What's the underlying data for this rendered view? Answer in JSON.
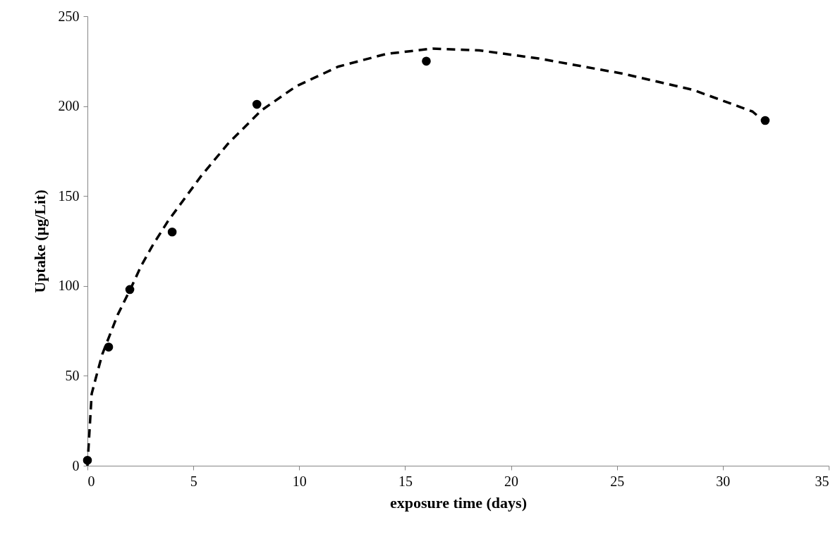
{
  "chart_data": {
    "type": "scatter",
    "xlabel": "exposure time (days)",
    "ylabel": "Uptake (µg/Lit)",
    "xlim": [
      0,
      35
    ],
    "xticks": [
      0,
      5,
      10,
      15,
      20,
      25,
      30,
      35
    ],
    "ylim": [
      0,
      250
    ],
    "yticks": [
      0,
      50,
      100,
      150,
      200,
      250
    ],
    "grid": false,
    "series": [
      {
        "color": "#000000",
        "marker": "circle",
        "x": [
          0,
          1,
          2,
          4,
          8,
          16,
          32
        ],
        "values": [
          3,
          66,
          98,
          130,
          201,
          225,
          192
        ]
      },
      {
        "type": "line",
        "color": "#000000",
        "line_style": "dashed",
        "marker": "none",
        "x": [
          0,
          0.2,
          0.4,
          0.7,
          1.43,
          2.1,
          2.53,
          3.1,
          3.8,
          5.36,
          6.63,
          8.2,
          9.85,
          11.85,
          14.1,
          16.3,
          18.5,
          21.3,
          25.3,
          28.6,
          31.4,
          31.7
        ],
        "values": [
          0,
          40,
          49,
          62,
          84,
          100,
          111,
          123,
          136,
          161,
          179,
          197.5,
          211,
          222,
          229,
          232,
          231,
          226.5,
          218,
          209,
          197,
          194
        ]
      }
    ]
  }
}
